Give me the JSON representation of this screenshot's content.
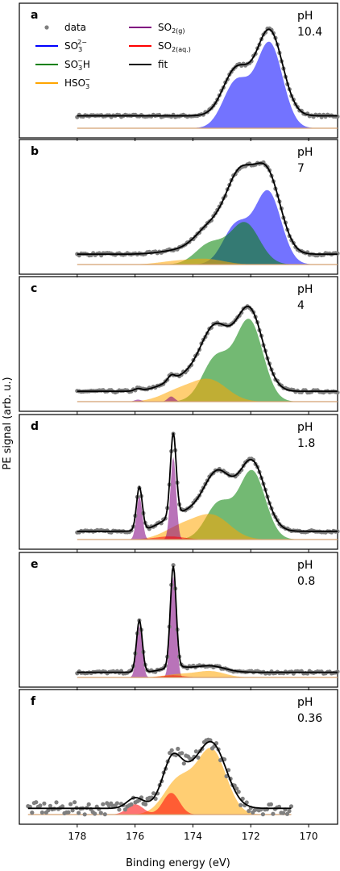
{
  "chart_data": {
    "type": "line",
    "figure": {
      "ylabel": "PE signal (arb. u.)",
      "xlabel": "Binding energy (eV)",
      "xticks": [
        178,
        176,
        174,
        172,
        170
      ],
      "xlim": [
        180,
        169
      ]
    },
    "legend": {
      "placement": "top-left of panel a",
      "entries": [
        {
          "key": "data",
          "text": "data",
          "color": "#7f7f7f",
          "marker": "dot"
        },
        {
          "key": "so3",
          "text": "SO",
          "sub": "3",
          "sup": "2−",
          "color": "#0000ff"
        },
        {
          "key": "so3h",
          "text": "SO",
          "sub": "3",
          "tail": "H",
          "sup": "−",
          "color": "#008000"
        },
        {
          "key": "hso3",
          "text": "HSO",
          "sub": "3",
          "sup": "−",
          "color": "#ffa500"
        },
        {
          "key": "so2g",
          "text": "SO",
          "sub": "2(g)",
          "color": "#800080"
        },
        {
          "key": "so2aq",
          "text": "SO",
          "sub": "2(aq.)",
          "color": "#ff0000"
        },
        {
          "key": "fit",
          "text": "fit",
          "color": "#000000"
        }
      ]
    },
    "panel_labels": [
      "a",
      "b",
      "c",
      "d",
      "e",
      "f"
    ],
    "ph_prefix": "pH",
    "panels": [
      {
        "letter": "a",
        "ph": "10.4",
        "x_range": [
          178,
          169
        ],
        "baseline": 0.12,
        "components": [
          {
            "species": "so3",
            "peaks": [
              {
                "center": 171.35,
                "height": 0.82,
                "width": 0.45
              },
              {
                "center": 172.5,
                "height": 0.45,
                "width": 0.45
              }
            ]
          }
        ]
      },
      {
        "letter": "b",
        "ph": "7",
        "x_range": [
          178,
          169
        ],
        "baseline": 0.1,
        "components": [
          {
            "species": "so3",
            "peaks": [
              {
                "center": 171.4,
                "height": 0.7,
                "width": 0.45
              },
              {
                "center": 172.5,
                "height": 0.38,
                "width": 0.45
              }
            ]
          },
          {
            "species": "so3h",
            "peaks": [
              {
                "center": 172.2,
                "height": 0.4,
                "width": 0.5
              },
              {
                "center": 173.4,
                "height": 0.2,
                "width": 0.5
              }
            ]
          },
          {
            "species": "hso3",
            "peaks": [
              {
                "center": 173.5,
                "height": 0.05,
                "width": 0.6
              },
              {
                "center": 174.6,
                "height": 0.03,
                "width": 0.6
              }
            ]
          }
        ]
      },
      {
        "letter": "c",
        "ph": "4",
        "x_range": [
          178,
          169
        ],
        "baseline": 0.1,
        "components": [
          {
            "species": "so3h",
            "peaks": [
              {
                "center": 172.05,
                "height": 0.78,
                "width": 0.47
              },
              {
                "center": 173.2,
                "height": 0.42,
                "width": 0.47
              }
            ]
          },
          {
            "species": "hso3",
            "peaks": [
              {
                "center": 173.4,
                "height": 0.2,
                "width": 0.6
              },
              {
                "center": 174.5,
                "height": 0.1,
                "width": 0.6
              }
            ]
          },
          {
            "species": "so2g",
            "peaks": [
              {
                "center": 174.75,
                "height": 0.05,
                "width": 0.12
              },
              {
                "center": 175.9,
                "height": 0.02,
                "width": 0.12
              }
            ]
          }
        ]
      },
      {
        "letter": "d",
        "ph": "1.8",
        "x_range": [
          178,
          169
        ],
        "baseline": 0.08,
        "components": [
          {
            "species": "so3h",
            "peaks": [
              {
                "center": 171.95,
                "height": 0.66,
                "width": 0.45
              },
              {
                "center": 173.1,
                "height": 0.35,
                "width": 0.45
              }
            ]
          },
          {
            "species": "hso3",
            "peaks": [
              {
                "center": 173.3,
                "height": 0.22,
                "width": 0.6
              },
              {
                "center": 174.4,
                "height": 0.12,
                "width": 0.6
              }
            ]
          },
          {
            "species": "so2g",
            "peaks": [
              {
                "center": 174.68,
                "height": 0.8,
                "width": 0.1
              },
              {
                "center": 175.85,
                "height": 0.42,
                "width": 0.1
              }
            ]
          },
          {
            "species": "so2aq",
            "peaks": [
              {
                "center": 174.8,
                "height": 0.03,
                "width": 0.5
              }
            ]
          }
        ]
      },
      {
        "letter": "e",
        "ph": "0.8",
        "x_range": [
          178,
          169
        ],
        "baseline": 0.05,
        "components": [
          {
            "species": "so2g",
            "peaks": [
              {
                "center": 174.68,
                "height": 0.98,
                "width": 0.1
              },
              {
                "center": 175.85,
                "height": 0.5,
                "width": 0.1
              }
            ]
          },
          {
            "species": "hso3",
            "peaks": [
              {
                "center": 173.4,
                "height": 0.06,
                "width": 0.5
              },
              {
                "center": 174.5,
                "height": 0.03,
                "width": 0.5
              }
            ]
          },
          {
            "species": "so2aq",
            "peaks": [
              {
                "center": 174.7,
                "height": 0.02,
                "width": 0.4
              }
            ]
          }
        ]
      },
      {
        "letter": "f",
        "ph": "0.36",
        "x_range": [
          179.7,
          170.6
        ],
        "baseline": 0.06,
        "components": [
          {
            "species": "hso3",
            "peaks": [
              {
                "center": 173.35,
                "height": 0.62,
                "width": 0.5
              },
              {
                "center": 174.5,
                "height": 0.33,
                "width": 0.5
              }
            ]
          },
          {
            "species": "so2aq",
            "peaks": [
              {
                "center": 174.75,
                "height": 0.21,
                "width": 0.28
              },
              {
                "center": 176.0,
                "height": 0.1,
                "width": 0.28
              }
            ]
          }
        ]
      }
    ]
  }
}
